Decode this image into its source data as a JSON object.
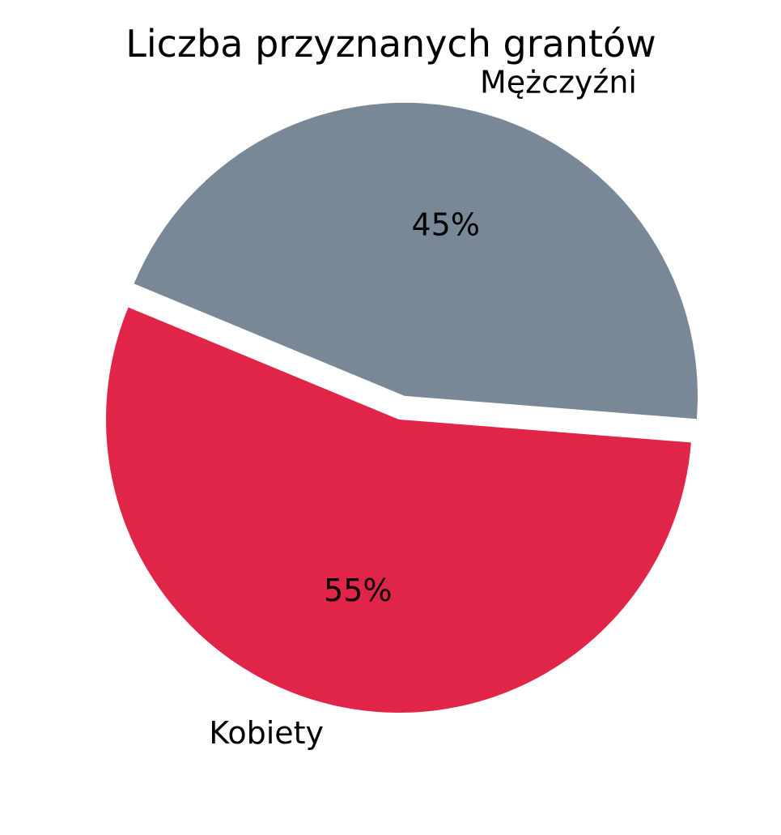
{
  "chart_data": {
    "type": "pie",
    "title": "Liczba przyznanych grantów",
    "categories": [
      "Kobiety",
      "Mężczyźni"
    ],
    "values": [
      55,
      45
    ],
    "percent_labels": [
      "55%",
      "45%"
    ],
    "colors": [
      "#E12548",
      "#798897"
    ],
    "exploded": [
      "Mężczyźni"
    ],
    "start_angle_deg": 157.5,
    "direction": "counterclockwise"
  }
}
